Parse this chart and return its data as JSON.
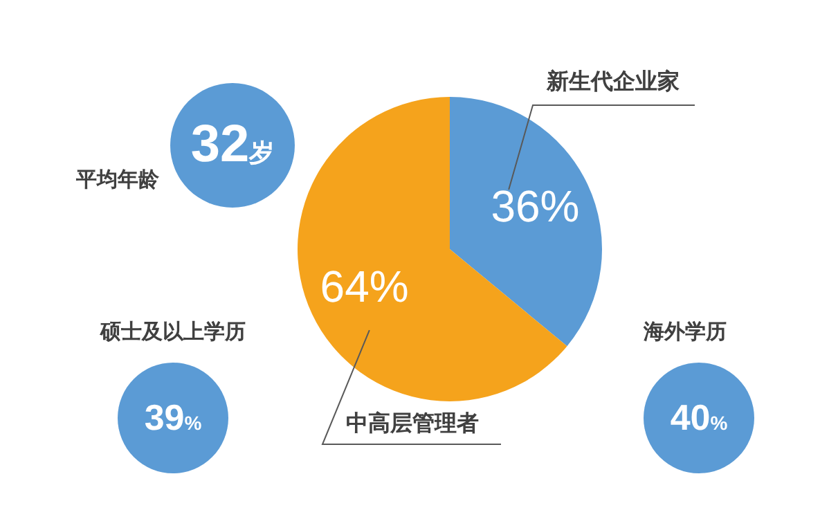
{
  "chart_data": {
    "type": "pie",
    "categories": [
      "新生代企业家",
      "中高层管理者"
    ],
    "values": [
      36,
      64
    ],
    "colors": [
      "#5b9bd5",
      "#f5a31c"
    ],
    "value_labels": [
      "36%",
      "64%"
    ],
    "legend": false,
    "annotations": [
      "平均年龄",
      "32岁",
      "硕士及以上学历",
      "39%",
      "海外学历",
      "40%"
    ]
  }
}
